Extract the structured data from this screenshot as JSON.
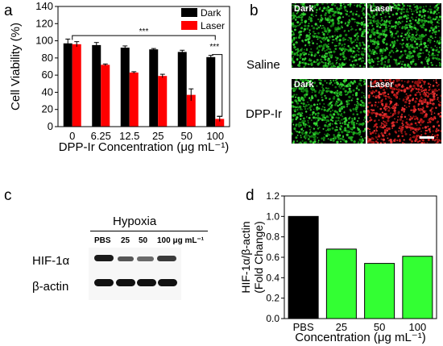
{
  "panels": {
    "a": "a",
    "b": "b",
    "c": "c",
    "d": "d"
  },
  "chart_data": [
    {
      "type": "bar",
      "panel": "a",
      "categories": [
        "0",
        "6.25",
        "12.5",
        "25",
        "50",
        "100"
      ],
      "series": [
        {
          "name": "Dark",
          "color": "#000000",
          "values": [
            97,
            95,
            92,
            90,
            87,
            81
          ],
          "errors": [
            5,
            3,
            2,
            1,
            2,
            2
          ]
        },
        {
          "name": "Laser",
          "color": "#ff0000",
          "values": [
            96,
            72,
            63,
            59,
            37,
            9
          ],
          "errors": [
            3,
            1,
            1,
            2,
            7,
            3
          ]
        }
      ],
      "xlabel": "DPP-Ir Concentration (μg mL⁻¹)",
      "ylabel": "Cell Viability (%)",
      "ylim": [
        0,
        140
      ],
      "yticks": [
        "0",
        "20",
        "40",
        "60",
        "80",
        "100",
        "120",
        "140"
      ],
      "legend": "top-right",
      "annotations": [
        "***",
        "***"
      ]
    },
    {
      "type": "bar",
      "panel": "d",
      "categories": [
        "PBS",
        "25",
        "50",
        "100"
      ],
      "values": [
        1.0,
        0.68,
        0.54,
        0.61
      ],
      "colors": [
        "#000000",
        "#33ff33",
        "#33ff33",
        "#33ff33"
      ],
      "xlabel": "Concentration (μg mL⁻¹)",
      "ylabel": "HIF-1α/β-actin",
      "ylabel2": "(Fold Change)",
      "ylim": [
        0,
        1.2
      ],
      "yticks": [
        "0.0",
        "0.2",
        "0.4",
        "0.6",
        "0.8",
        "1.0",
        "1.2"
      ]
    }
  ],
  "panel_b": {
    "row_labels": [
      "Saline",
      "DPP-Ir"
    ],
    "col_labels": [
      "Dark",
      "Laser"
    ],
    "cell_colors": [
      "green",
      "green",
      "green",
      "red"
    ]
  },
  "panel_c": {
    "title": "Hypoxia",
    "lanes": [
      "PBS",
      "25",
      "50",
      "100 μg mL⁻¹"
    ],
    "rows": [
      "HIF-1α",
      "β-actin"
    ]
  }
}
